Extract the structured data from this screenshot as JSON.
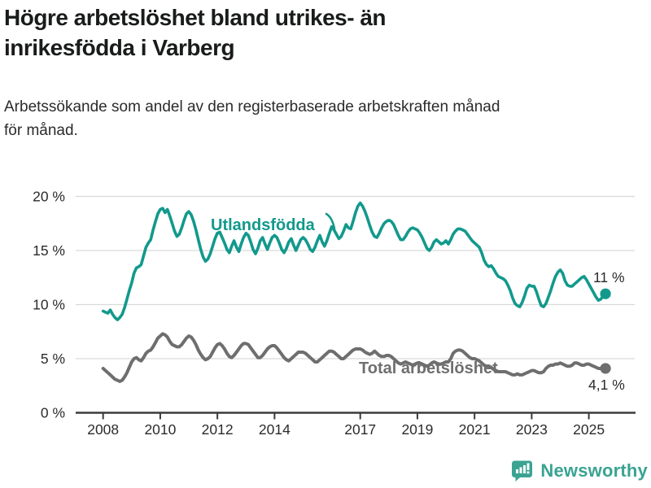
{
  "title": {
    "line1": "Högre arbetslöshet bland utrikes- än",
    "line2": "inrikesfödda i Varberg"
  },
  "subtitle": {
    "line1": "Arbetssökande som andel av den registerbaserade arbetskraften månad",
    "line2": "för månad."
  },
  "footer": {
    "brand": "Newsworthy",
    "logo_icon": "newsworthy-speech-bubble-bar-chart-icon",
    "brand_color": "#3aa392"
  },
  "colors": {
    "foreign_born_line": "#12998c",
    "total_line": "#6e6e6e",
    "axis": "#3b3b3b",
    "grid": "#d9d9d9",
    "tick_text": "#2b2b2b",
    "annotation_text": "#2b2b2b"
  },
  "chart_data": {
    "type": "line",
    "frequency": "monthly",
    "x_start": "2008-01",
    "x_end": "2025-08",
    "grid": "horizontal",
    "legend_position": "inline-labels",
    "ylim": [
      0,
      21
    ],
    "y_ticks": [
      0,
      5,
      10,
      15,
      20
    ],
    "y_tick_labels": [
      "0 %",
      "5 %",
      "10 %",
      "15 %",
      "20 %"
    ],
    "x_tick_years": [
      2008,
      2010,
      2012,
      2014,
      2017,
      2019,
      2021,
      2023,
      2025
    ],
    "x_tick_labels": [
      "2008",
      "2010",
      "2012",
      "2014",
      "2017",
      "2019",
      "2021",
      "2023",
      "2025"
    ],
    "series": [
      {
        "name": "Utlandsfödda",
        "color": "#12998c",
        "end_label": "11 %",
        "end_value": 11.0,
        "values": [
          9.4,
          9.3,
          9.2,
          9.5,
          9.1,
          8.8,
          8.6,
          8.8,
          9.1,
          9.7,
          10.5,
          11.3,
          12.0,
          12.9,
          13.4,
          13.5,
          13.7,
          14.5,
          15.3,
          15.7,
          16.0,
          16.9,
          17.7,
          18.4,
          18.8,
          18.9,
          18.5,
          18.8,
          18.2,
          17.5,
          16.8,
          16.3,
          16.5,
          17.1,
          17.8,
          18.4,
          18.6,
          18.3,
          17.7,
          16.9,
          16.0,
          15.1,
          14.4,
          14.0,
          14.2,
          14.7,
          15.4,
          16.1,
          16.6,
          16.7,
          16.2,
          15.7,
          15.1,
          14.8,
          15.4,
          15.9,
          15.3,
          14.9,
          15.6,
          16.2,
          16.6,
          16.4,
          15.8,
          15.1,
          14.7,
          15.2,
          15.9,
          16.2,
          15.6,
          15.1,
          15.7,
          16.2,
          16.4,
          16.2,
          15.7,
          15.1,
          14.8,
          15.2,
          15.8,
          16.1,
          15.5,
          15.0,
          15.5,
          16.0,
          16.2,
          16.0,
          15.6,
          15.1,
          14.9,
          15.3,
          15.9,
          16.4,
          15.8,
          15.4,
          15.9,
          16.6,
          17.2,
          16.9,
          16.5,
          16.1,
          16.3,
          16.8,
          17.4,
          17.1,
          17.0,
          17.7,
          18.5,
          19.1,
          19.4,
          19.1,
          18.6,
          18.0,
          17.3,
          16.7,
          16.3,
          16.2,
          16.6,
          17.1,
          17.5,
          17.7,
          17.8,
          17.7,
          17.4,
          16.9,
          16.4,
          16.0,
          16.0,
          16.3,
          16.7,
          17.0,
          17.1,
          17.0,
          16.9,
          16.6,
          16.2,
          15.7,
          15.2,
          15.0,
          15.3,
          15.8,
          16.0,
          15.8,
          15.6,
          15.7,
          15.9,
          15.6,
          16.0,
          16.5,
          16.8,
          17.0,
          17.0,
          16.9,
          16.8,
          16.5,
          16.2,
          15.9,
          15.7,
          15.5,
          15.3,
          14.8,
          14.1,
          13.7,
          13.5,
          13.6,
          13.3,
          12.9,
          12.6,
          12.5,
          12.4,
          12.2,
          11.8,
          11.3,
          10.6,
          10.1,
          9.9,
          9.8,
          10.2,
          10.8,
          11.5,
          11.8,
          11.7,
          11.7,
          11.2,
          10.5,
          9.9,
          9.8,
          10.1,
          10.7,
          11.3,
          12.0,
          12.6,
          13.0,
          13.2,
          12.9,
          12.2,
          11.8,
          11.7,
          11.7,
          11.9,
          12.1,
          12.3,
          12.5,
          12.6,
          12.3,
          11.9,
          11.5,
          11.1,
          10.7,
          10.4,
          10.5,
          10.8,
          11.0
        ]
      },
      {
        "name": "Total arbetslöshet",
        "color": "#6e6e6e",
        "end_label": "4,1 %",
        "end_value": 4.1,
        "values": [
          4.1,
          3.9,
          3.7,
          3.5,
          3.3,
          3.1,
          3.0,
          2.9,
          3.0,
          3.3,
          3.7,
          4.2,
          4.7,
          5.0,
          5.1,
          4.9,
          4.8,
          5.1,
          5.5,
          5.7,
          5.8,
          6.1,
          6.5,
          6.9,
          7.1,
          7.3,
          7.2,
          7.0,
          6.6,
          6.3,
          6.2,
          6.1,
          6.1,
          6.3,
          6.6,
          6.9,
          7.1,
          7.0,
          6.7,
          6.3,
          5.8,
          5.4,
          5.1,
          4.9,
          5.0,
          5.2,
          5.6,
          6.0,
          6.3,
          6.4,
          6.2,
          5.9,
          5.5,
          5.2,
          5.1,
          5.3,
          5.6,
          5.9,
          6.2,
          6.4,
          6.4,
          6.3,
          6.0,
          5.7,
          5.4,
          5.1,
          5.1,
          5.3,
          5.6,
          5.9,
          6.1,
          6.2,
          6.2,
          6.0,
          5.7,
          5.4,
          5.1,
          4.9,
          4.8,
          5.0,
          5.2,
          5.4,
          5.6,
          5.6,
          5.6,
          5.5,
          5.3,
          5.1,
          4.9,
          4.7,
          4.7,
          4.9,
          5.1,
          5.3,
          5.5,
          5.7,
          5.7,
          5.6,
          5.4,
          5.2,
          5.0,
          5.0,
          5.2,
          5.4,
          5.6,
          5.8,
          5.9,
          5.9,
          5.9,
          5.8,
          5.6,
          5.5,
          5.4,
          5.5,
          5.7,
          5.5,
          5.3,
          5.2,
          5.2,
          5.3,
          5.3,
          5.2,
          5.0,
          4.8,
          4.6,
          4.5,
          4.6,
          4.7,
          4.6,
          4.5,
          4.4,
          4.5,
          4.6,
          4.6,
          4.5,
          4.4,
          4.3,
          4.4,
          4.6,
          4.7,
          4.6,
          4.5,
          4.5,
          4.6,
          4.7,
          4.7,
          5.0,
          5.5,
          5.7,
          5.8,
          5.8,
          5.7,
          5.5,
          5.3,
          5.1,
          5.0,
          5.0,
          4.9,
          4.8,
          4.6,
          4.4,
          4.3,
          4.3,
          4.2,
          4.0,
          3.9,
          3.8,
          3.8,
          3.8,
          3.8,
          3.7,
          3.6,
          3.5,
          3.5,
          3.6,
          3.5,
          3.5,
          3.6,
          3.7,
          3.8,
          3.9,
          3.9,
          3.8,
          3.7,
          3.7,
          3.8,
          4.1,
          4.3,
          4.4,
          4.4,
          4.5,
          4.5,
          4.6,
          4.5,
          4.4,
          4.3,
          4.3,
          4.4,
          4.6,
          4.6,
          4.5,
          4.4,
          4.4,
          4.5,
          4.5,
          4.4,
          4.3,
          4.2,
          4.1,
          4.1,
          4.2,
          4.1
        ]
      }
    ]
  }
}
